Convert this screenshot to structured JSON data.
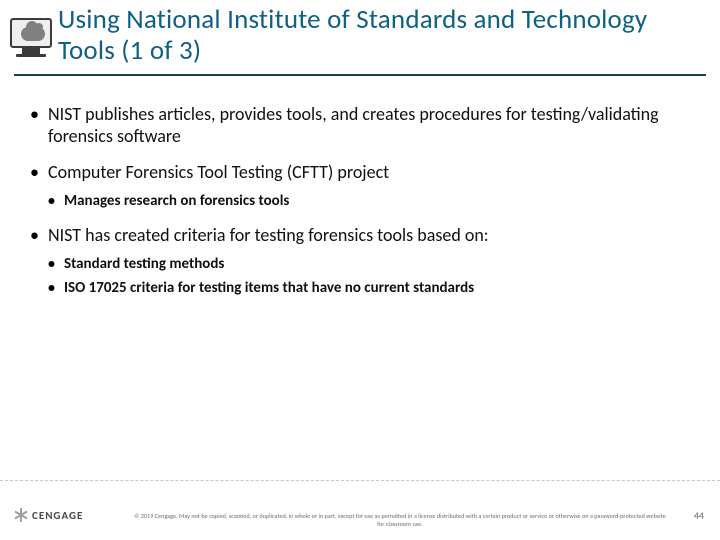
{
  "title": "Using National Institute of Standards and Technology Tools (1 of 3)",
  "colors": {
    "title": "#0f6083",
    "underline": "#1f3d4a",
    "text": "#111111",
    "footer_text": "#6d6d6d",
    "background": "#ffffff"
  },
  "typography": {
    "title_fontsize": 27,
    "bullet1_fontsize": 18,
    "bullet2_fontsize": 15,
    "bullet2_weight": 600,
    "footer_fontsize": 6.2,
    "brand_fontsize": 11,
    "pagenum_fontsize": 10
  },
  "bullets": [
    {
      "text": "NIST publishes articles, provides tools, and creates procedures for testing/validating forensics software",
      "children": []
    },
    {
      "text": "Computer Forensics Tool Testing (CFTT) project",
      "children": [
        {
          "text": "Manages research on forensics tools"
        }
      ]
    },
    {
      "text": "NIST has created criteria for testing forensics tools based on:",
      "children": [
        {
          "text": "Standard testing methods"
        },
        {
          "text": "ISO 17025 criteria for testing items that have no current standards"
        }
      ]
    }
  ],
  "brand": "CENGAGE",
  "copyright": "© 2019 Cengage. May not be copied, scanned, or duplicated, in whole or in part, except for use as permitted in a license distributed with a certain product or service or otherwise on a password-protected website for classroom use.",
  "page_number": "44"
}
